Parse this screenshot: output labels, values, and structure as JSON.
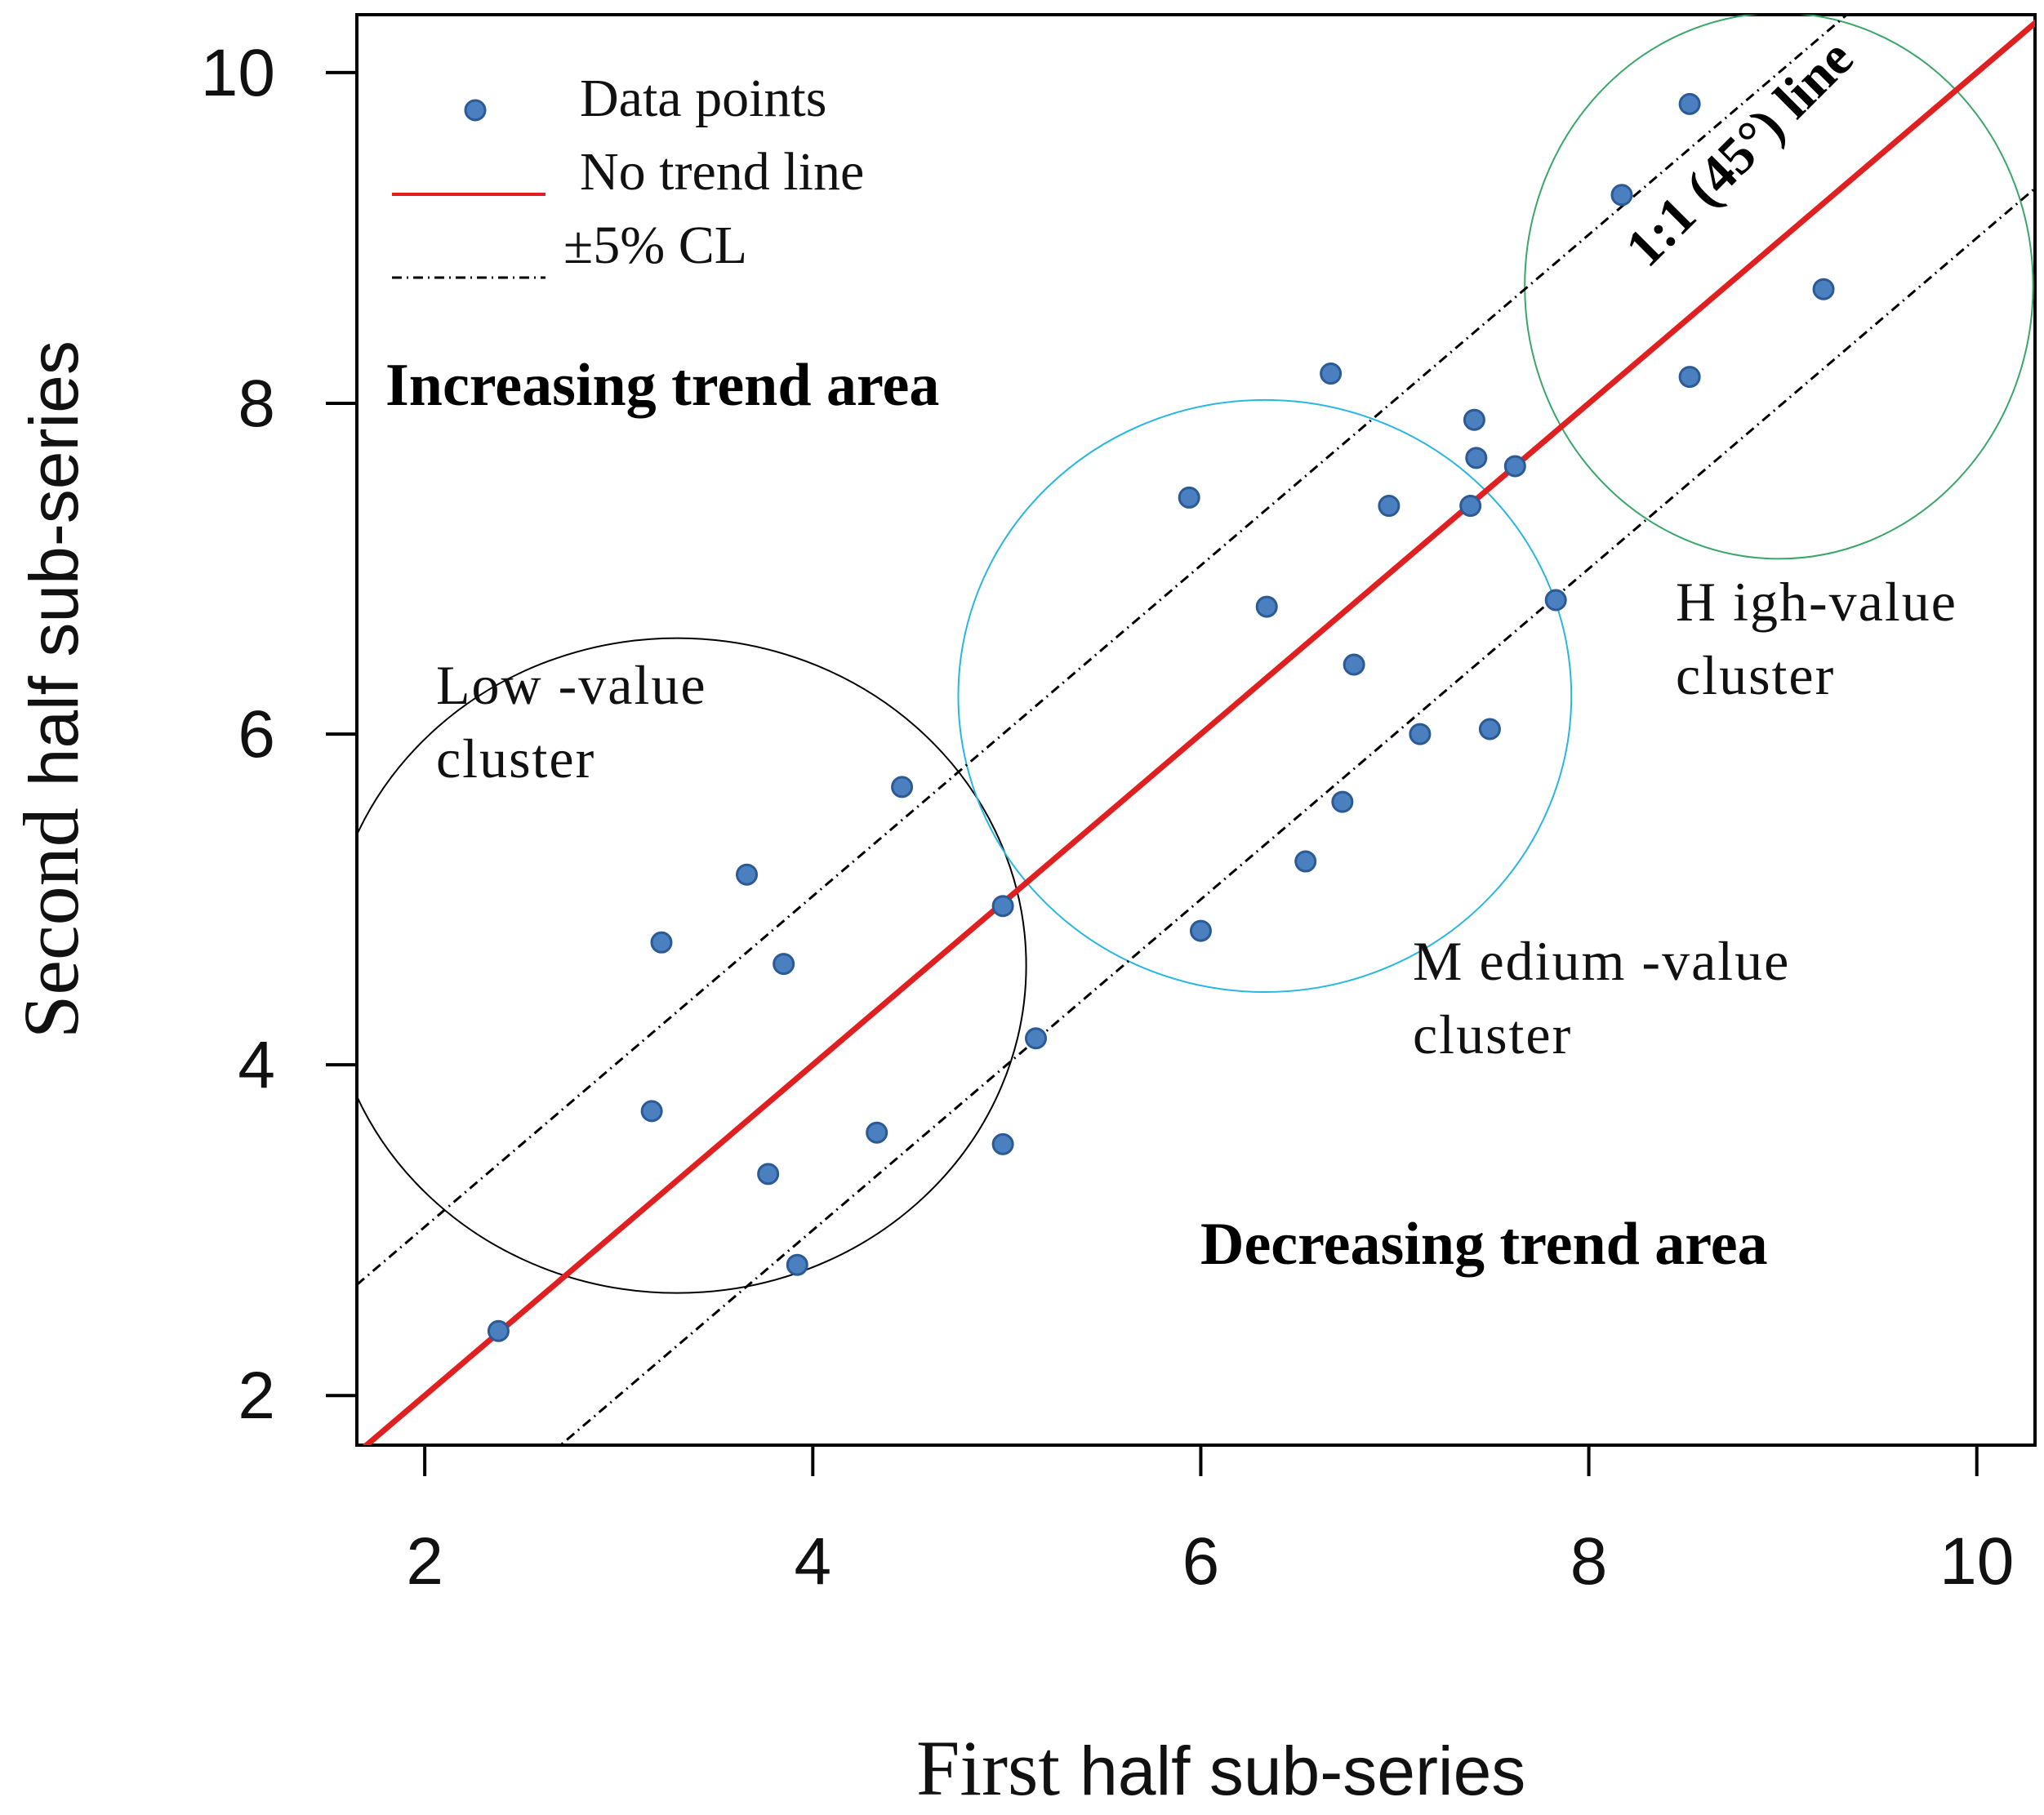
{
  "chart_data": {
    "type": "scatter",
    "xlabel_parts": [
      "First",
      "half sub-series"
    ],
    "ylabel_parts": [
      "Second",
      "half sub-series"
    ],
    "xlim": [
      1.65,
      10.3
    ],
    "ylim": [
      1.7,
      10.35
    ],
    "xticks": [
      2,
      4,
      6,
      8,
      10
    ],
    "yticks": [
      2,
      4,
      6,
      8,
      10
    ],
    "tick_labels": {
      "x": [
        "2",
        "4",
        "6",
        "8",
        "10"
      ],
      "y": [
        "2",
        "4",
        "6",
        "8",
        "10"
      ]
    },
    "grid": false,
    "legend": {
      "placement": "top-left",
      "items": [
        {
          "label": "Data points",
          "kind": "marker",
          "color": "#4a7fc0"
        },
        {
          "label": "No trend line",
          "kind": "solid-line",
          "color": "#e02020"
        },
        {
          "label": "±5% CL",
          "kind": "dashdot-line",
          "color": "#000000"
        }
      ]
    },
    "series": [
      {
        "name": "Data points",
        "color": "#4a7fc0",
        "points": [
          {
            "x": 2.38,
            "y": 2.39
          },
          {
            "x": 3.17,
            "y": 3.72
          },
          {
            "x": 3.22,
            "y": 4.74
          },
          {
            "x": 3.66,
            "y": 5.15
          },
          {
            "x": 3.77,
            "y": 3.34
          },
          {
            "x": 3.85,
            "y": 4.61
          },
          {
            "x": 3.92,
            "y": 2.79
          },
          {
            "x": 4.33,
            "y": 3.59
          },
          {
            "x": 4.46,
            "y": 5.68
          },
          {
            "x": 4.98,
            "y": 4.96
          },
          {
            "x": 4.98,
            "y": 3.52
          },
          {
            "x": 5.15,
            "y": 4.16
          },
          {
            "x": 5.94,
            "y": 7.43
          },
          {
            "x": 6.0,
            "y": 4.81
          },
          {
            "x": 6.34,
            "y": 6.77
          },
          {
            "x": 6.54,
            "y": 5.23
          },
          {
            "x": 6.67,
            "y": 8.18
          },
          {
            "x": 6.73,
            "y": 5.59
          },
          {
            "x": 6.79,
            "y": 6.42
          },
          {
            "x": 6.97,
            "y": 7.38
          },
          {
            "x": 7.13,
            "y": 6.0
          },
          {
            "x": 7.39,
            "y": 7.38
          },
          {
            "x": 7.41,
            "y": 7.9
          },
          {
            "x": 7.42,
            "y": 7.67
          },
          {
            "x": 7.49,
            "y": 6.03
          },
          {
            "x": 7.62,
            "y": 7.62
          },
          {
            "x": 7.83,
            "y": 6.81
          },
          {
            "x": 8.17,
            "y": 9.26
          },
          {
            "x": 8.52,
            "y": 9.81
          },
          {
            "x": 8.52,
            "y": 8.16
          },
          {
            "x": 9.21,
            "y": 8.69
          }
        ]
      }
    ],
    "lines": [
      {
        "name": "No trend line",
        "slope": 1.0,
        "intercept": 0,
        "color": "#e02020",
        "style": "solid"
      },
      {
        "name": "+5% CL",
        "slope": 1.0,
        "intercept": 1.02,
        "color": "#000000",
        "style": "dashdot"
      },
      {
        "name": "-5% CL",
        "slope": 1.0,
        "intercept": -1.0,
        "color": "#000000",
        "style": "dashdot"
      }
    ],
    "clusters": [
      {
        "name": "low",
        "label_lines": [
          "Low -value",
          "cluster"
        ],
        "center": [
          3.3,
          4.6
        ],
        "radii": [
          1.8,
          1.98
        ],
        "color": "#000000"
      },
      {
        "name": "medium",
        "label_lines": [
          "M edium -value",
          "cluster"
        ],
        "center": [
          6.33,
          6.23
        ],
        "radii": [
          1.58,
          1.79
        ],
        "color": "#29b6e0"
      },
      {
        "name": "high",
        "label_lines": [
          "H igh-value",
          "cluster"
        ],
        "center": [
          8.98,
          8.71
        ],
        "radii": [
          1.31,
          1.65
        ],
        "color": "#3aa66a"
      }
    ],
    "annotations": {
      "increasing": "Increasing trend area",
      "decreasing": "Decreasing trend area",
      "diagonal": "1:1 (45°) line"
    }
  }
}
